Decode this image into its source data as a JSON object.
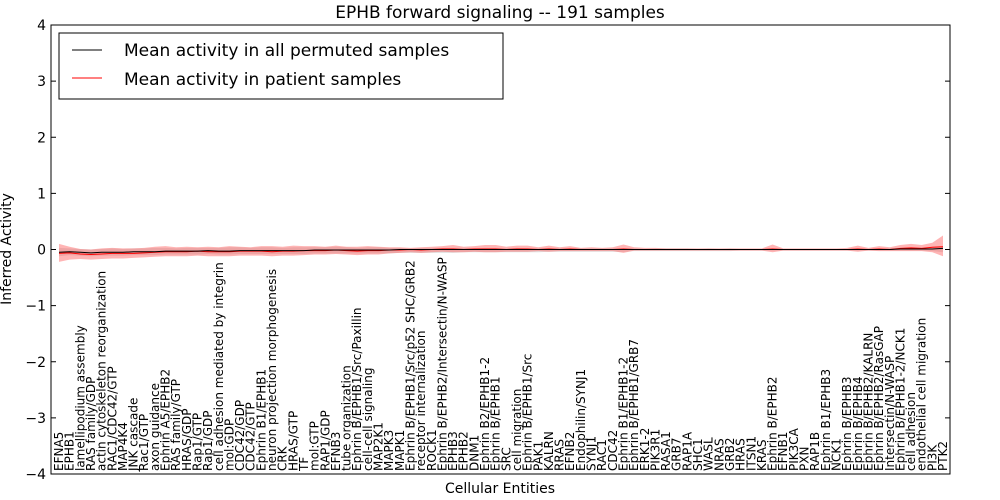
{
  "chart_data": {
    "type": "line",
    "title": "EPHB forward signaling -- 191 samples",
    "xlabel": "Cellular Entities",
    "ylabel": "Inferred Activity",
    "ylim": [
      -4,
      4
    ],
    "yticks": [
      "4",
      "3",
      "2",
      "1",
      "0",
      "−1",
      "−2",
      "−3",
      "−4"
    ],
    "legend": {
      "placement": "top-left",
      "entries": [
        {
          "label": "Mean activity in all permuted samples",
          "color": "#000000"
        },
        {
          "label": "Mean activity in patient samples",
          "color": "#ff0000"
        }
      ]
    },
    "categories": [
      "EFNA5",
      "EPHB1",
      "lamellipodium assembly",
      "RAS family/GDP",
      "actin cytoskeleton reorganization",
      "RAC1/CDC42/GTP",
      "MAP4K4",
      "JNK cascade",
      "Rac1/GTP",
      "axon guidance",
      "Ephrin A5/EPHB2",
      "RAS family/GTP",
      "HRAS/GDP",
      "Rap1/GTP",
      "Rap1/GDP",
      "cell adhesion mediated by integrin",
      "mol:GDP",
      "CDC42/GDP",
      "CDC42/GTP",
      "Ephrin B1/EPHB1",
      "neuron projection morphogenesis",
      "CRK",
      "HRAS/GTP",
      "TF",
      "mol:GTP",
      "RAP1/GDP",
      "EFNB3",
      "tube organization",
      "Ephrin B/EPHB1/Src/Paxillin",
      "cell-cell signaling",
      "MAP2K1",
      "MAPK3",
      "MAPK1",
      "Ephrin B/EPHB1/Src/p52 SHC/GRB2",
      "receptor internalization",
      "ROCK1",
      "Ephrin B/EPHB2/Intersectin/N-WASP",
      "EPHB3",
      "EPHB2",
      "DNM1",
      "Ephrin B2/EPHB1-2",
      "Ephrin B/EPHB1",
      "SRC",
      "cell migration",
      "Ephrin B/EPHB1/Src",
      "PAK1",
      "KALRN",
      "RRAS",
      "EFNB2",
      "Endophilin/SYNJ1",
      "SYNJ1",
      "RAC1",
      "CDC42",
      "Ephrin B1/EPHB1-2",
      "Ephrin B/EPHB1/GRB7",
      "ERK1-2",
      "PIK3R1",
      "RASA1",
      "GRB7",
      "RAP1A",
      "SHC1",
      "WASL",
      "NRAS",
      "GRB2",
      "HRAS",
      "ITSN1",
      "KRAS",
      "Ephrin B/EPHB2",
      "EFNB1",
      "PIK3CA",
      "PXN",
      "RAP1B",
      "Ephrin B1/EPHB3",
      "NCK1",
      "Ephrin B/EPHB3",
      "Ephrin B/EPHB4",
      "Ephrin B/EPHB2/KALRN",
      "Ephrin B/EPHB2/RasGAP",
      "Intersectin/N-WASP",
      "Ephrin B/EPHB1-2/NCK1",
      "cell adhesion",
      "endothelial cell migration",
      "PI3K",
      "PTK2"
    ],
    "series": [
      {
        "name": "Mean activity in all permuted samples",
        "color": "#000000",
        "values": [
          -0.05,
          -0.04,
          -0.05,
          -0.06,
          -0.05,
          -0.05,
          -0.05,
          -0.04,
          -0.04,
          -0.04,
          -0.03,
          -0.03,
          -0.03,
          -0.03,
          -0.02,
          -0.03,
          -0.03,
          -0.02,
          -0.02,
          -0.02,
          -0.02,
          -0.02,
          -0.02,
          -0.02,
          -0.01,
          -0.01,
          -0.01,
          -0.01,
          -0.01,
          -0.01,
          -0.01,
          -0.01,
          0.0,
          0.0,
          0.0,
          0.0,
          0.0,
          0.0,
          0.0,
          0.0,
          0.0,
          0.0,
          0.0,
          0.0,
          0.0,
          0.0,
          0.0,
          0.0,
          0.0,
          0.0,
          0.0,
          0.0,
          0.0,
          0.0,
          0.0,
          0.0,
          0.0,
          0.0,
          0.0,
          0.0,
          0.0,
          0.0,
          0.0,
          0.0,
          0.0,
          0.0,
          0.0,
          0.0,
          0.0,
          0.0,
          0.0,
          0.0,
          0.0,
          0.0,
          0.0,
          0.0,
          0.0,
          0.0,
          0.0,
          0.01,
          0.01,
          0.01,
          0.01,
          0.02
        ],
        "band_upper": [
          0.03,
          0.02,
          0.01,
          0.0,
          0.01,
          0.02,
          0.01,
          0.02,
          0.02,
          0.03,
          0.03,
          0.02,
          0.03,
          0.03,
          0.03,
          0.03,
          0.04,
          0.04,
          0.03,
          0.04,
          0.04,
          0.03,
          0.04,
          0.04,
          0.04,
          0.04,
          0.05,
          0.04,
          0.03,
          0.04,
          0.04,
          0.03,
          0.03,
          0.02,
          0.03,
          0.03,
          0.03,
          0.03,
          0.03,
          0.02,
          0.03,
          0.03,
          0.02,
          0.03,
          0.02,
          0.02,
          0.03,
          0.02,
          0.02,
          0.02,
          0.02,
          0.02,
          0.02,
          0.02,
          0.02,
          0.01,
          0.02,
          0.02,
          0.02,
          0.02,
          0.01,
          0.02,
          0.01,
          0.02,
          0.01,
          0.01,
          0.01,
          0.02,
          0.01,
          0.01,
          0.01,
          0.01,
          0.01,
          0.01,
          0.01,
          0.01,
          0.01,
          0.01,
          0.02,
          0.02,
          0.03,
          0.03,
          0.03,
          0.05
        ],
        "band_lower": [
          -0.12,
          -0.1,
          -0.11,
          -0.12,
          -0.11,
          -0.11,
          -0.11,
          -0.1,
          -0.1,
          -0.1,
          -0.09,
          -0.09,
          -0.09,
          -0.09,
          -0.08,
          -0.09,
          -0.09,
          -0.08,
          -0.08,
          -0.08,
          -0.08,
          -0.08,
          -0.08,
          -0.08,
          -0.07,
          -0.07,
          -0.07,
          -0.07,
          -0.07,
          -0.07,
          -0.07,
          -0.07,
          -0.06,
          -0.06,
          -0.06,
          -0.06,
          -0.06,
          -0.06,
          -0.05,
          -0.05,
          -0.05,
          -0.05,
          -0.05,
          -0.05,
          -0.05,
          -0.05,
          -0.04,
          -0.04,
          -0.04,
          -0.04,
          -0.04,
          -0.04,
          -0.04,
          -0.04,
          -0.03,
          -0.03,
          -0.03,
          -0.03,
          -0.03,
          -0.03,
          -0.03,
          -0.03,
          -0.03,
          -0.03,
          -0.02,
          -0.02,
          -0.02,
          -0.02,
          -0.02,
          -0.02,
          -0.02,
          -0.02,
          -0.02,
          -0.02,
          -0.02,
          -0.02,
          -0.02,
          -0.02,
          -0.02,
          -0.02,
          -0.02,
          -0.02,
          -0.03,
          -0.05
        ]
      },
      {
        "name": "Mean activity in patient samples",
        "color": "#ff0000",
        "values": [
          -0.07,
          -0.06,
          -0.08,
          -0.09,
          -0.08,
          -0.07,
          -0.07,
          -0.07,
          -0.06,
          -0.05,
          -0.04,
          -0.04,
          -0.04,
          -0.03,
          -0.04,
          -0.04,
          -0.04,
          -0.03,
          -0.03,
          -0.03,
          -0.04,
          -0.03,
          -0.03,
          -0.02,
          -0.02,
          -0.02,
          -0.01,
          -0.02,
          -0.03,
          -0.02,
          -0.02,
          -0.01,
          -0.01,
          0.0,
          -0.01,
          0.0,
          0.01,
          0.01,
          0.0,
          0.01,
          0.01,
          0.01,
          0.0,
          0.01,
          0.01,
          0.0,
          0.01,
          0.0,
          0.01,
          0.0,
          0.0,
          0.0,
          0.0,
          0.01,
          0.0,
          0.0,
          0.0,
          0.0,
          0.0,
          0.0,
          0.0,
          0.0,
          0.0,
          0.0,
          0.0,
          0.0,
          0.0,
          0.01,
          0.0,
          0.0,
          0.0,
          0.0,
          0.0,
          0.0,
          0.0,
          0.01,
          0.0,
          0.01,
          0.0,
          0.02,
          0.03,
          0.02,
          0.04,
          0.05
        ],
        "band_upper": [
          0.1,
          0.05,
          0.01,
          0.0,
          0.02,
          0.03,
          0.02,
          0.02,
          0.03,
          0.05,
          0.06,
          0.04,
          0.05,
          0.04,
          0.05,
          0.04,
          0.06,
          0.05,
          0.04,
          0.06,
          0.06,
          0.05,
          0.07,
          0.06,
          0.06,
          0.05,
          0.07,
          0.05,
          0.05,
          0.06,
          0.05,
          0.04,
          0.04,
          0.03,
          0.04,
          0.05,
          0.06,
          0.08,
          0.05,
          0.06,
          0.08,
          0.08,
          0.05,
          0.07,
          0.07,
          0.04,
          0.07,
          0.04,
          0.06,
          0.03,
          0.04,
          0.03,
          0.04,
          0.09,
          0.04,
          0.03,
          0.03,
          0.02,
          0.02,
          0.02,
          0.02,
          0.02,
          0.02,
          0.02,
          0.02,
          0.02,
          0.02,
          0.09,
          0.02,
          0.02,
          0.02,
          0.02,
          0.02,
          0.02,
          0.03,
          0.07,
          0.03,
          0.06,
          0.04,
          0.08,
          0.1,
          0.08,
          0.12,
          0.25
        ],
        "band_lower": [
          -0.22,
          -0.18,
          -0.17,
          -0.18,
          -0.17,
          -0.16,
          -0.16,
          -0.15,
          -0.14,
          -0.13,
          -0.12,
          -0.12,
          -0.12,
          -0.11,
          -0.12,
          -0.12,
          -0.12,
          -0.11,
          -0.11,
          -0.11,
          -0.12,
          -0.11,
          -0.11,
          -0.1,
          -0.09,
          -0.09,
          -0.08,
          -0.09,
          -0.1,
          -0.09,
          -0.09,
          -0.07,
          -0.06,
          -0.05,
          -0.06,
          -0.05,
          -0.04,
          -0.05,
          -0.05,
          -0.04,
          -0.05,
          -0.05,
          -0.04,
          -0.04,
          -0.04,
          -0.03,
          -0.04,
          -0.03,
          -0.03,
          -0.03,
          -0.03,
          -0.03,
          -0.03,
          -0.06,
          -0.02,
          -0.02,
          -0.02,
          -0.02,
          -0.02,
          -0.02,
          -0.02,
          -0.02,
          -0.02,
          -0.02,
          -0.02,
          -0.02,
          -0.02,
          -0.05,
          -0.02,
          -0.02,
          -0.02,
          -0.02,
          -0.02,
          -0.02,
          -0.02,
          -0.04,
          -0.02,
          -0.03,
          -0.03,
          -0.03,
          -0.03,
          -0.03,
          -0.05,
          -0.12
        ]
      }
    ]
  }
}
